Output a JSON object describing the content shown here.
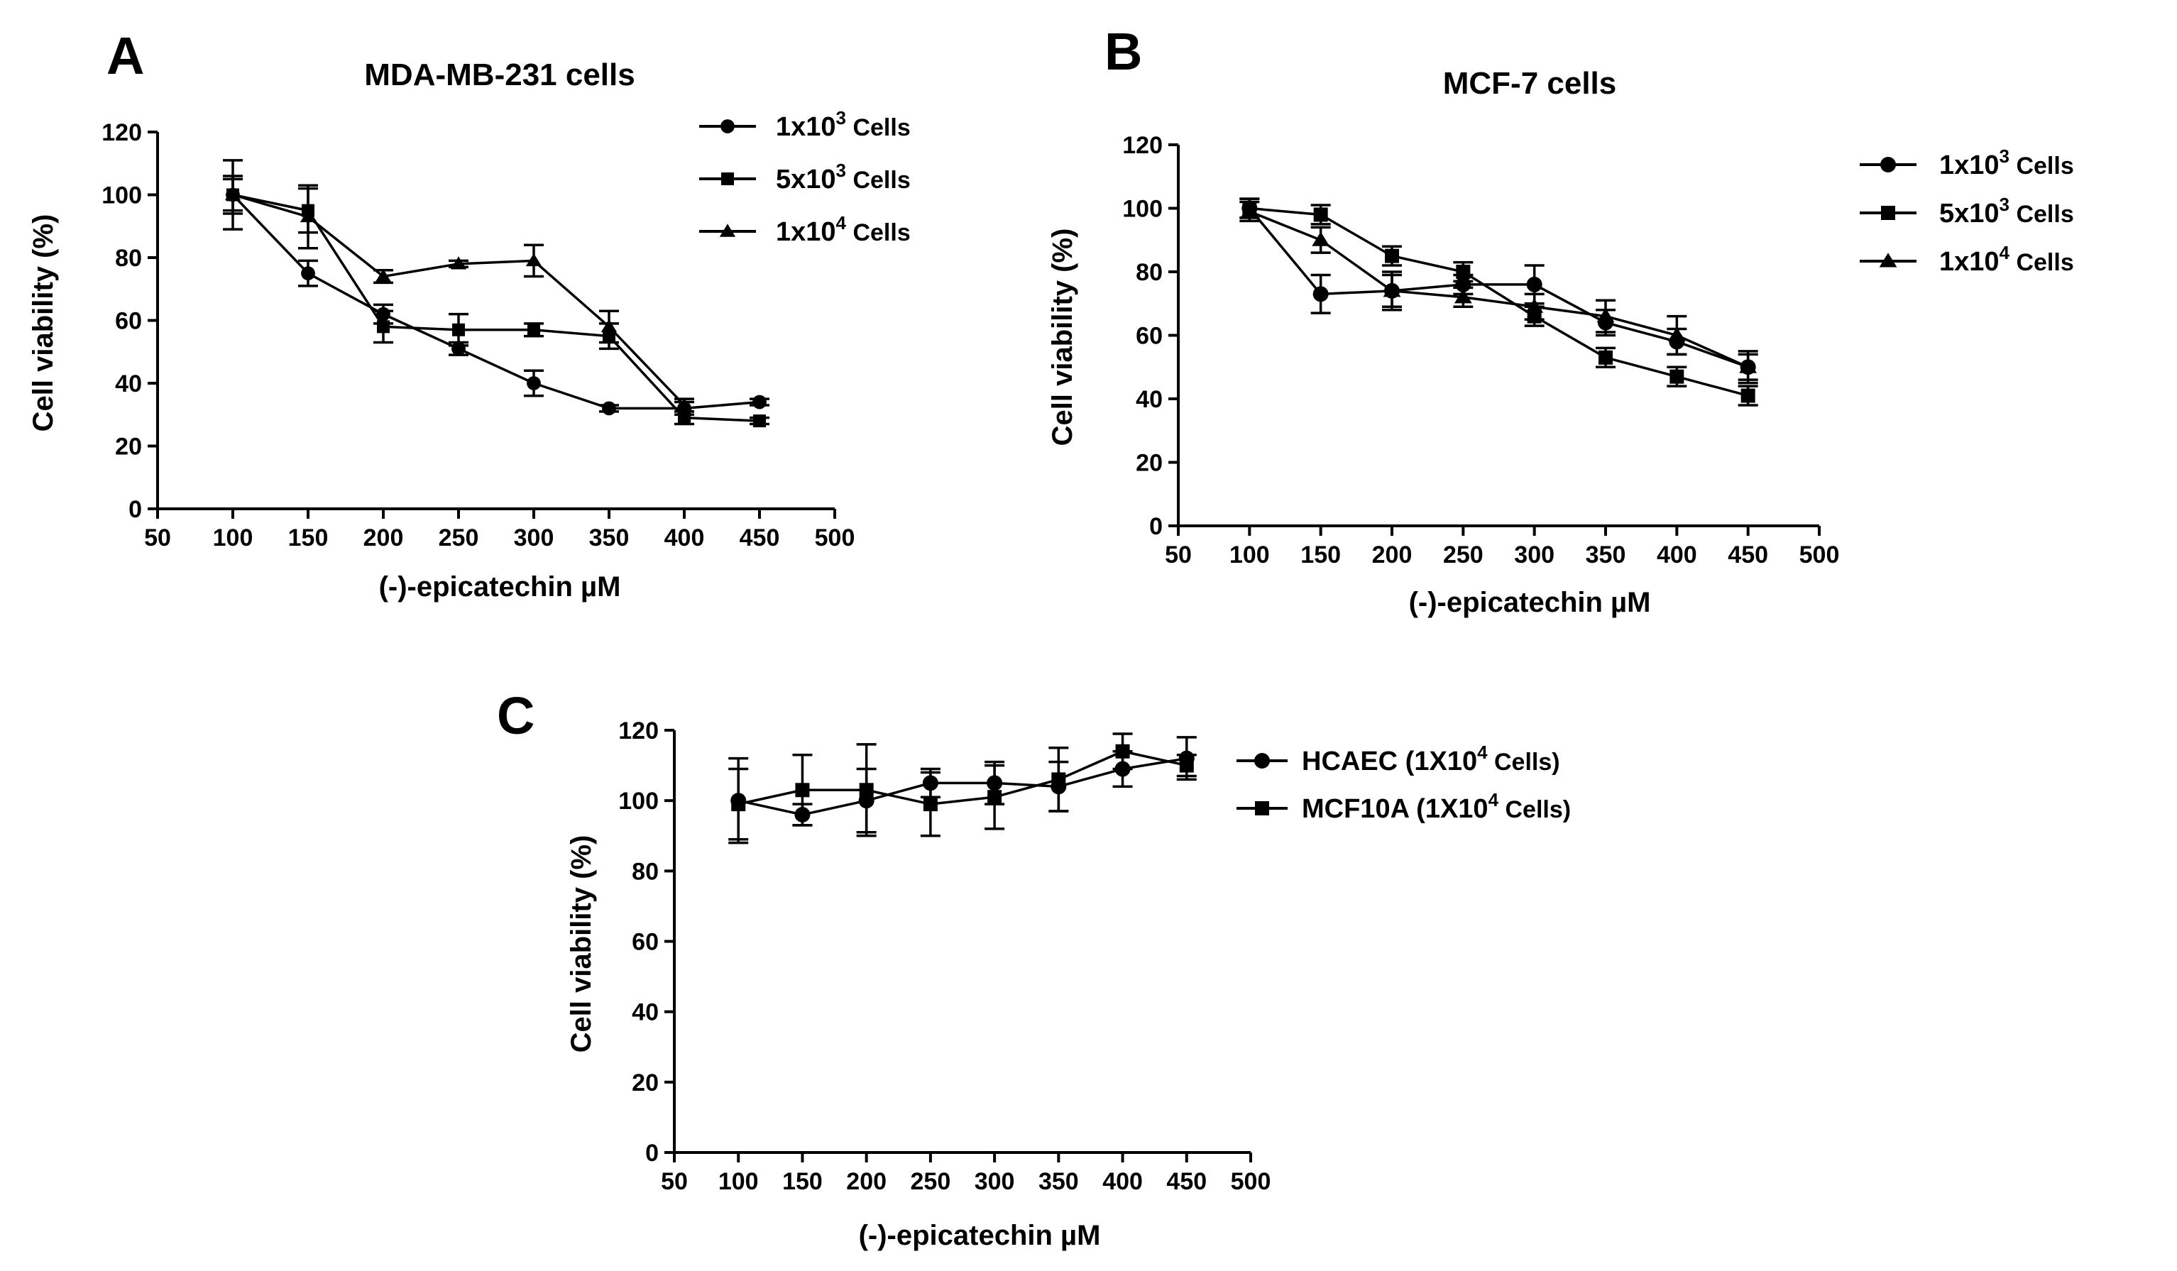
{
  "figure": {
    "colors": {
      "ink": "#000000",
      "background": "#ffffff"
    }
  },
  "chart_data": [
    {
      "panel": "A",
      "type": "line",
      "title": "MDA-MB-231 cells",
      "xlabel": "(-)-epicatechin µM",
      "ylabel": "Cell viability (%)",
      "xlim": [
        50,
        500
      ],
      "ylim": [
        0,
        120
      ],
      "xticks": [
        50,
        100,
        150,
        200,
        250,
        300,
        350,
        400,
        450,
        500
      ],
      "yticks": [
        0,
        20,
        40,
        60,
        80,
        100,
        120
      ],
      "x": [
        100,
        150,
        200,
        250,
        300,
        350,
        400,
        450
      ],
      "legend_position": "top-right",
      "series": [
        {
          "name": "1x10",
          "exp": "3",
          "unit": " Cells",
          "marker": "circle",
          "values": [
            100,
            75,
            62,
            51,
            40,
            32,
            32,
            34
          ],
          "errors": [
            5,
            4,
            3,
            2,
            4,
            1,
            2,
            1
          ]
        },
        {
          "name": "5x10",
          "exp": "3",
          "unit": " Cells",
          "marker": "square",
          "values": [
            100,
            95,
            58,
            57,
            57,
            55,
            29,
            28
          ],
          "errors": [
            6,
            7,
            5,
            5,
            2,
            4,
            2,
            1
          ]
        },
        {
          "name": "1x10",
          "exp": "4",
          "unit": " Cells",
          "marker": "triangle",
          "values": [
            100,
            93,
            74,
            78,
            79,
            58,
            33,
            null
          ],
          "errors": [
            11,
            10,
            2,
            1,
            5,
            5,
            2,
            0
          ]
        }
      ]
    },
    {
      "panel": "B",
      "type": "line",
      "title": "MCF-7 cells",
      "xlabel": "(-)-epicatechin µM",
      "ylabel": "Cell viability (%)",
      "xlim": [
        50,
        500
      ],
      "ylim": [
        0,
        120
      ],
      "xticks": [
        50,
        100,
        150,
        200,
        250,
        300,
        350,
        400,
        450,
        500
      ],
      "yticks": [
        0,
        20,
        40,
        60,
        80,
        100,
        120
      ],
      "x": [
        100,
        150,
        200,
        250,
        300,
        350,
        400,
        450
      ],
      "legend_position": "right",
      "series": [
        {
          "name": "1x10",
          "exp": "3",
          "unit": " Cells",
          "marker": "circle",
          "values": [
            100,
            73,
            74,
            76,
            76,
            64,
            58,
            50
          ],
          "errors": [
            3,
            6,
            5,
            3,
            6,
            4,
            4,
            4
          ]
        },
        {
          "name": "5x10",
          "exp": "3",
          "unit": " Cells",
          "marker": "square",
          "values": [
            100,
            98,
            85,
            80,
            66,
            53,
            47,
            41
          ],
          "errors": [
            3,
            3,
            3,
            3,
            3,
            3,
            3,
            3
          ]
        },
        {
          "name": "1x10",
          "exp": "4",
          "unit": " Cells",
          "marker": "triangle",
          "values": [
            99,
            90,
            74,
            72,
            69,
            66,
            60,
            50
          ],
          "errors": [
            3,
            4,
            6,
            3,
            4,
            5,
            6,
            5
          ]
        }
      ]
    },
    {
      "panel": "C",
      "type": "line",
      "title": "",
      "xlabel": "(-)-epicatechin µM",
      "ylabel": "Cell viability (%)",
      "xlim": [
        50,
        500
      ],
      "ylim": [
        0,
        120
      ],
      "xticks": [
        50,
        100,
        150,
        200,
        250,
        300,
        350,
        400,
        450,
        500
      ],
      "yticks": [
        0,
        20,
        40,
        60,
        80,
        100,
        120
      ],
      "x": [
        100,
        150,
        200,
        250,
        300,
        350,
        400,
        450
      ],
      "legend_position": "top-right",
      "series": [
        {
          "name": "HCAEC (1X10",
          "exp": "4",
          "unit": " Cells)",
          "marker": "circle",
          "values": [
            100,
            96,
            100,
            105,
            105,
            104,
            109,
            112
          ],
          "errors": [
            12,
            3,
            9,
            4,
            6,
            7,
            5,
            6
          ]
        },
        {
          "name": "MCF10A (1X10",
          "exp": "4",
          "unit": " Cells)",
          "marker": "square",
          "values": [
            99,
            103,
            103,
            99,
            101,
            106,
            114,
            110
          ],
          "errors": [
            10,
            10,
            13,
            9,
            9,
            9,
            5,
            3
          ]
        }
      ]
    }
  ]
}
